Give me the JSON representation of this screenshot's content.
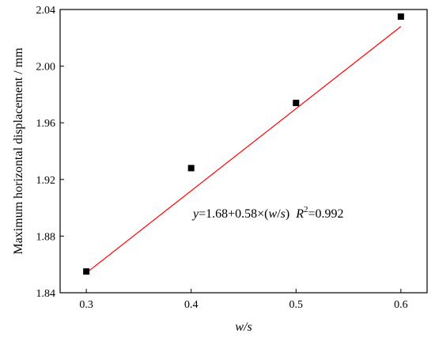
{
  "chart_data": {
    "type": "scatter",
    "xlabel": "w/s",
    "ylabel": "Maximum horizontal displacement / mm",
    "xlim": [
      0.275,
      0.625
    ],
    "ylim": [
      1.84,
      2.04
    ],
    "x_ticks": [
      "0.3",
      "0.4",
      "0.5",
      "0.6"
    ],
    "y_ticks": [
      "1.84",
      "1.88",
      "1.92",
      "1.96",
      "2.00",
      "2.04"
    ],
    "x_tick_values": [
      0.3,
      0.4,
      0.5,
      0.6
    ],
    "y_tick_values": [
      1.84,
      1.88,
      1.92,
      1.96,
      2.0,
      2.04
    ],
    "series": [
      {
        "x": [
          0.3,
          0.4,
          0.5,
          0.6
        ],
        "y": [
          1.855,
          1.928,
          1.974,
          2.035
        ],
        "marker": "square",
        "color": "#000000"
      }
    ],
    "fit_line": {
      "intercept": 1.68,
      "slope": 0.58,
      "x_range": [
        0.3,
        0.6
      ],
      "color": "#ff0000"
    },
    "annotation": {
      "y_var": "y",
      "equals_part": "=1.68+0.58×(",
      "w_var": "w",
      "slash": "/",
      "s_var": "s",
      "close_paren": ")",
      "r_var": "R",
      "r_sup": "2",
      "r_value": "=0.992"
    },
    "grid": false,
    "legend": "none"
  }
}
